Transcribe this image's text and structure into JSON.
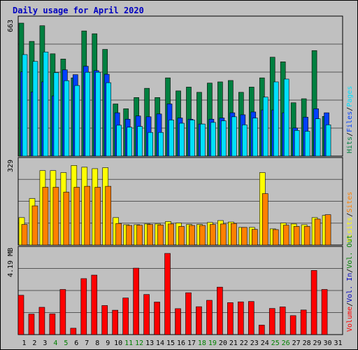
{
  "title": "Daily usage for April 2020",
  "colors": {
    "background": "#c0c0c0",
    "title": "#0000c0",
    "hits": "#008040",
    "files": "#0040ff",
    "pages": "#00e0ff",
    "visits": "#ffff00",
    "sites": "#ff8000",
    "volume": "#ff0000",
    "kbytes_in": "#0000c0",
    "kbytes_out": "#008000"
  },
  "chart_data": [
    {
      "type": "bar",
      "panel": "hits_files_pages",
      "ymax_label": "663",
      "ymax": 663,
      "side_legend": [
        {
          "text": "Hits",
          "color": "#008040"
        },
        {
          "text": "/",
          "color": "#000000"
        },
        {
          "text": "Files",
          "color": "#0040ff"
        },
        {
          "text": "/",
          "color": "#000000"
        },
        {
          "text": "Pages",
          "color": "#00e0ff"
        }
      ],
      "categories": [
        "1",
        "2",
        "3",
        "4",
        "5",
        "6",
        "7",
        "8",
        "9",
        "10",
        "11",
        "12",
        "13",
        "14",
        "15",
        "16",
        "17",
        "18",
        "19",
        "20",
        "21",
        "22",
        "23",
        "24",
        "25",
        "26",
        "27",
        "28",
        "29",
        "30"
      ],
      "series": [
        {
          "name": "Hits",
          "values": [
            663,
            572,
            650,
            510,
            484,
            390,
            624,
            610,
            532,
            260,
            236,
            292,
            338,
            292,
            390,
            325,
            344,
            318,
            364,
            370,
            377,
            318,
            344,
            390,
            493,
            470,
            266,
            286,
            526,
            198
          ]
        },
        {
          "name": "Files",
          "values": [
            420,
            320,
            370,
            300,
            430,
            406,
            448,
            426,
            408,
            216,
            184,
            200,
            196,
            210,
            260,
            190,
            184,
            160,
            184,
            190,
            216,
            206,
            220,
            230,
            230,
            216,
            140,
            194,
            236,
            216
          ]
        },
        {
          "name": "Pages",
          "values": [
            506,
            472,
            519,
            416,
            376,
            352,
            418,
            418,
            366,
            154,
            144,
            148,
            118,
            118,
            180,
            164,
            180,
            160,
            168,
            176,
            196,
            156,
            190,
            294,
            370,
            384,
            128,
            124,
            186,
            156
          ]
        }
      ]
    },
    {
      "type": "bar",
      "panel": "visits_sites",
      "ymax_label": "329",
      "ymax": 329,
      "side_legend": [
        {
          "text": "Visits",
          "color": "#ffff00"
        },
        {
          "text": "/",
          "color": "#000000"
        },
        {
          "text": "Sites",
          "color": "#ff8000"
        }
      ],
      "categories": [
        "1",
        "2",
        "3",
        "4",
        "5",
        "6",
        "7",
        "8",
        "9",
        "10",
        "11",
        "12",
        "13",
        "14",
        "15",
        "16",
        "17",
        "18",
        "19",
        "20",
        "21",
        "22",
        "23",
        "24",
        "25",
        "26",
        "27",
        "28",
        "29",
        "30"
      ],
      "series": [
        {
          "name": "Visits",
          "values": [
            112,
            190,
            304,
            304,
            296,
            325,
            318,
            312,
            316,
            112,
            83,
            83,
            86,
            86,
            96,
            90,
            84,
            84,
            92,
            100,
            94,
            72,
            72,
            296,
            66,
            90,
            86,
            83,
            112,
            121
          ]
        },
        {
          "name": "Sites",
          "values": [
            84,
            160,
            236,
            236,
            216,
            236,
            240,
            236,
            240,
            88,
            80,
            81,
            84,
            82,
            86,
            76,
            80,
            80,
            84,
            86,
            88,
            72,
            64,
            210,
            63,
            81,
            76,
            76,
            106,
            124
          ]
        }
      ]
    },
    {
      "type": "bar",
      "panel": "volume",
      "ymax_label": "4.19 MB",
      "ymax": 4.19,
      "side_legend": [
        {
          "text": "Volume",
          "color": "#ff0000"
        },
        {
          "text": "/",
          "color": "#000000"
        },
        {
          "text": "Vol. In",
          "color": "#0000c0"
        },
        {
          "text": "/",
          "color": "#000000"
        },
        {
          "text": "Vol. Out",
          "color": "#008000"
        }
      ],
      "categories": [
        "1",
        "2",
        "3",
        "4",
        "5",
        "6",
        "7",
        "8",
        "9",
        "10",
        "11",
        "12",
        "13",
        "14",
        "15",
        "16",
        "17",
        "18",
        "19",
        "20",
        "21",
        "22",
        "23",
        "24",
        "25",
        "26",
        "27",
        "28",
        "29",
        "30"
      ],
      "series": [
        {
          "name": "Volume",
          "values": [
            2.03,
            1.06,
            1.41,
            1.07,
            2.33,
            0.33,
            2.89,
            3.07,
            1.5,
            1.26,
            1.89,
            3.43,
            2.07,
            1.68,
            4.19,
            1.34,
            2.16,
            1.44,
            1.77,
            2.45,
            1.65,
            1.69,
            1.71,
            0.49,
            1.35,
            1.43,
            0.98,
            1.27,
            3.31,
            2.33
          ]
        }
      ]
    }
  ],
  "x_labels": [
    {
      "text": "1",
      "color": "#000000"
    },
    {
      "text": "2",
      "color": "#000000"
    },
    {
      "text": "3",
      "color": "#000000"
    },
    {
      "text": "4",
      "color": "#008000"
    },
    {
      "text": "5",
      "color": "#008000"
    },
    {
      "text": "6",
      "color": "#000000"
    },
    {
      "text": "7",
      "color": "#000000"
    },
    {
      "text": "8",
      "color": "#000000"
    },
    {
      "text": "9",
      "color": "#000000"
    },
    {
      "text": "10",
      "color": "#000000"
    },
    {
      "text": "11",
      "color": "#008000"
    },
    {
      "text": "12",
      "color": "#008000"
    },
    {
      "text": "13",
      "color": "#000000"
    },
    {
      "text": "14",
      "color": "#000000"
    },
    {
      "text": "15",
      "color": "#000000"
    },
    {
      "text": "16",
      "color": "#000000"
    },
    {
      "text": "17",
      "color": "#000000"
    },
    {
      "text": "18",
      "color": "#008000"
    },
    {
      "text": "19",
      "color": "#008000"
    },
    {
      "text": "20",
      "color": "#000000"
    },
    {
      "text": "21",
      "color": "#000000"
    },
    {
      "text": "22",
      "color": "#000000"
    },
    {
      "text": "23",
      "color": "#000000"
    },
    {
      "text": "24",
      "color": "#000000"
    },
    {
      "text": "25",
      "color": "#008000"
    },
    {
      "text": "26",
      "color": "#008000"
    },
    {
      "text": "27",
      "color": "#000000"
    },
    {
      "text": "28",
      "color": "#000000"
    },
    {
      "text": "29",
      "color": "#000000"
    },
    {
      "text": "30",
      "color": "#000000"
    },
    {
      "text": "31",
      "color": "#000000"
    }
  ]
}
